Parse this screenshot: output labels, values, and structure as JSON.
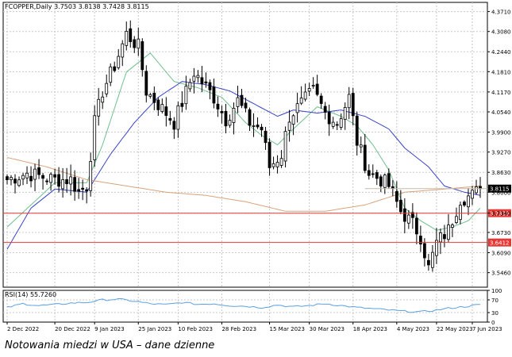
{
  "caption": "Notowania miedzi w USA – dane dzienne",
  "chart_data": [
    {
      "type": "candlestick",
      "title": "FCOPPER,Daily  3.7503 3.8138 3.7428 3.8115",
      "ylim": [
        3.5,
        4.4
      ],
      "y_ticks": [
        "4.3710",
        "4.3080",
        "4.2440",
        "4.1810",
        "4.1170",
        "4.0540",
        "3.9900",
        "3.9270",
        "3.8630",
        "3.8000",
        "3.7340",
        "3.6730",
        "3.6090",
        "3.5460"
      ],
      "x_ticks": [
        "2 Dec 2022",
        "20 Dec 2022",
        "9 Jan 2023",
        "25 Jan 2023",
        "10 Feb 2023",
        "28 Feb 2023",
        "15 Mar 2023",
        "30 Mar 2023",
        "18 Apr 2023",
        "4 May 2023",
        "22 May 2023",
        "7 Jun 2023"
      ],
      "grid": true,
      "last_price": {
        "label": "3.8115",
        "value": 3.8115
      },
      "horizontal_lines": [
        {
          "label": "3.7339",
          "value": 3.7339,
          "color": "#e53935"
        },
        {
          "label": "3.6412",
          "value": 3.6412,
          "color": "#e53935"
        }
      ],
      "colors": {
        "up": "#ffffff",
        "down": "#000000",
        "wick": "#000000",
        "ma_fast": "#6fbf8f",
        "ma_mid": "#3a45c8",
        "ma_slow": "#d9a37a",
        "rsi": "#5aa0e0"
      },
      "series": [
        {
          "name": "price",
          "anchors": [
            [
              0,
              3.84
            ],
            [
              5,
              3.86
            ],
            [
              12,
              3.84
            ],
            [
              16,
              3.84
            ],
            [
              18,
              3.8
            ],
            [
              20,
              3.82
            ],
            [
              22,
              4.02
            ],
            [
              24,
              4.12
            ],
            [
              27,
              4.2
            ],
            [
              30,
              4.3
            ],
            [
              33,
              4.26
            ],
            [
              35,
              4.12
            ],
            [
              40,
              4.05
            ],
            [
              42,
              4.02
            ],
            [
              47,
              4.18
            ],
            [
              52,
              4.1
            ],
            [
              55,
              4.03
            ],
            [
              58,
              4.09
            ],
            [
              61,
              4.02
            ],
            [
              64,
              4.0
            ],
            [
              66,
              3.88
            ],
            [
              69,
              3.92
            ],
            [
              71,
              4.04
            ],
            [
              74,
              4.08
            ],
            [
              77,
              4.12
            ],
            [
              80,
              4.05
            ],
            [
              83,
              4.02
            ],
            [
              86,
              4.1
            ],
            [
              88,
              3.96
            ],
            [
              91,
              3.86
            ],
            [
              94,
              3.84
            ],
            [
              96,
              3.82
            ],
            [
              99,
              3.74
            ],
            [
              102,
              3.7
            ],
            [
              104,
              3.66
            ],
            [
              106,
              3.56
            ],
            [
              108,
              3.64
            ],
            [
              111,
              3.68
            ],
            [
              114,
              3.78
            ],
            [
              117,
              3.79
            ],
            [
              119,
              3.81
            ]
          ]
        }
      ],
      "moving_averages": [
        {
          "kind": "fast",
          "anchors": [
            [
              0,
              3.69
            ],
            [
              12,
              3.83
            ],
            [
              20,
              3.83
            ],
            [
              24,
              3.95
            ],
            [
              30,
              4.18
            ],
            [
              36,
              4.24
            ],
            [
              42,
              4.15
            ],
            [
              48,
              4.13
            ],
            [
              54,
              4.1
            ],
            [
              60,
              4.02
            ],
            [
              64,
              3.98
            ],
            [
              68,
              3.95
            ],
            [
              72,
              4.0
            ],
            [
              78,
              4.07
            ],
            [
              84,
              4.04
            ],
            [
              88,
              4.01
            ],
            [
              92,
              3.95
            ],
            [
              96,
              3.87
            ],
            [
              100,
              3.75
            ],
            [
              104,
              3.71
            ],
            [
              108,
              3.68
            ],
            [
              112,
              3.69
            ],
            [
              116,
              3.71
            ],
            [
              119,
              3.75
            ]
          ]
        },
        {
          "kind": "mid",
          "anchors": [
            [
              0,
              3.62
            ],
            [
              6,
              3.75
            ],
            [
              12,
              3.81
            ],
            [
              20,
              3.8
            ],
            [
              26,
              3.92
            ],
            [
              32,
              4.02
            ],
            [
              38,
              4.1
            ],
            [
              44,
              4.15
            ],
            [
              50,
              4.14
            ],
            [
              56,
              4.12
            ],
            [
              62,
              4.08
            ],
            [
              68,
              4.04
            ],
            [
              72,
              4.06
            ],
            [
              78,
              4.05
            ],
            [
              84,
              4.06
            ],
            [
              90,
              4.04
            ],
            [
              96,
              4.0
            ],
            [
              100,
              3.94
            ],
            [
              106,
              3.88
            ],
            [
              110,
              3.82
            ],
            [
              115,
              3.8
            ],
            [
              119,
              3.79
            ]
          ]
        },
        {
          "kind": "slow",
          "anchors": [
            [
              0,
              3.91
            ],
            [
              10,
              3.88
            ],
            [
              20,
              3.84
            ],
            [
              30,
              3.82
            ],
            [
              40,
              3.8
            ],
            [
              50,
              3.79
            ],
            [
              60,
              3.77
            ],
            [
              70,
              3.74
            ],
            [
              80,
              3.74
            ],
            [
              90,
              3.76
            ],
            [
              100,
              3.8
            ],
            [
              110,
              3.81
            ],
            [
              119,
              3.82
            ]
          ]
        }
      ]
    },
    {
      "type": "line",
      "title": "RSI(14) 55.7260",
      "ylim": [
        0,
        100
      ],
      "y_ticks": [
        "100",
        "70",
        "30",
        "0"
      ],
      "levels": [
        70,
        30
      ],
      "series": [
        {
          "name": "RSI(14)",
          "anchors": [
            [
              0,
              46
            ],
            [
              4,
              58
            ],
            [
              8,
              52
            ],
            [
              12,
              55
            ],
            [
              16,
              60
            ],
            [
              20,
              62
            ],
            [
              24,
              70
            ],
            [
              28,
              72
            ],
            [
              32,
              66
            ],
            [
              36,
              58
            ],
            [
              40,
              55
            ],
            [
              44,
              62
            ],
            [
              48,
              56
            ],
            [
              52,
              58
            ],
            [
              56,
              52
            ],
            [
              60,
              50
            ],
            [
              64,
              46
            ],
            [
              68,
              54
            ],
            [
              72,
              48
            ],
            [
              76,
              52
            ],
            [
              80,
              58
            ],
            [
              84,
              52
            ],
            [
              88,
              46
            ],
            [
              92,
              42
            ],
            [
              96,
              38
            ],
            [
              100,
              34
            ],
            [
              104,
              32
            ],
            [
              108,
              38
            ],
            [
              112,
              45
            ],
            [
              116,
              50
            ],
            [
              119,
              55.7
            ]
          ]
        }
      ]
    }
  ]
}
